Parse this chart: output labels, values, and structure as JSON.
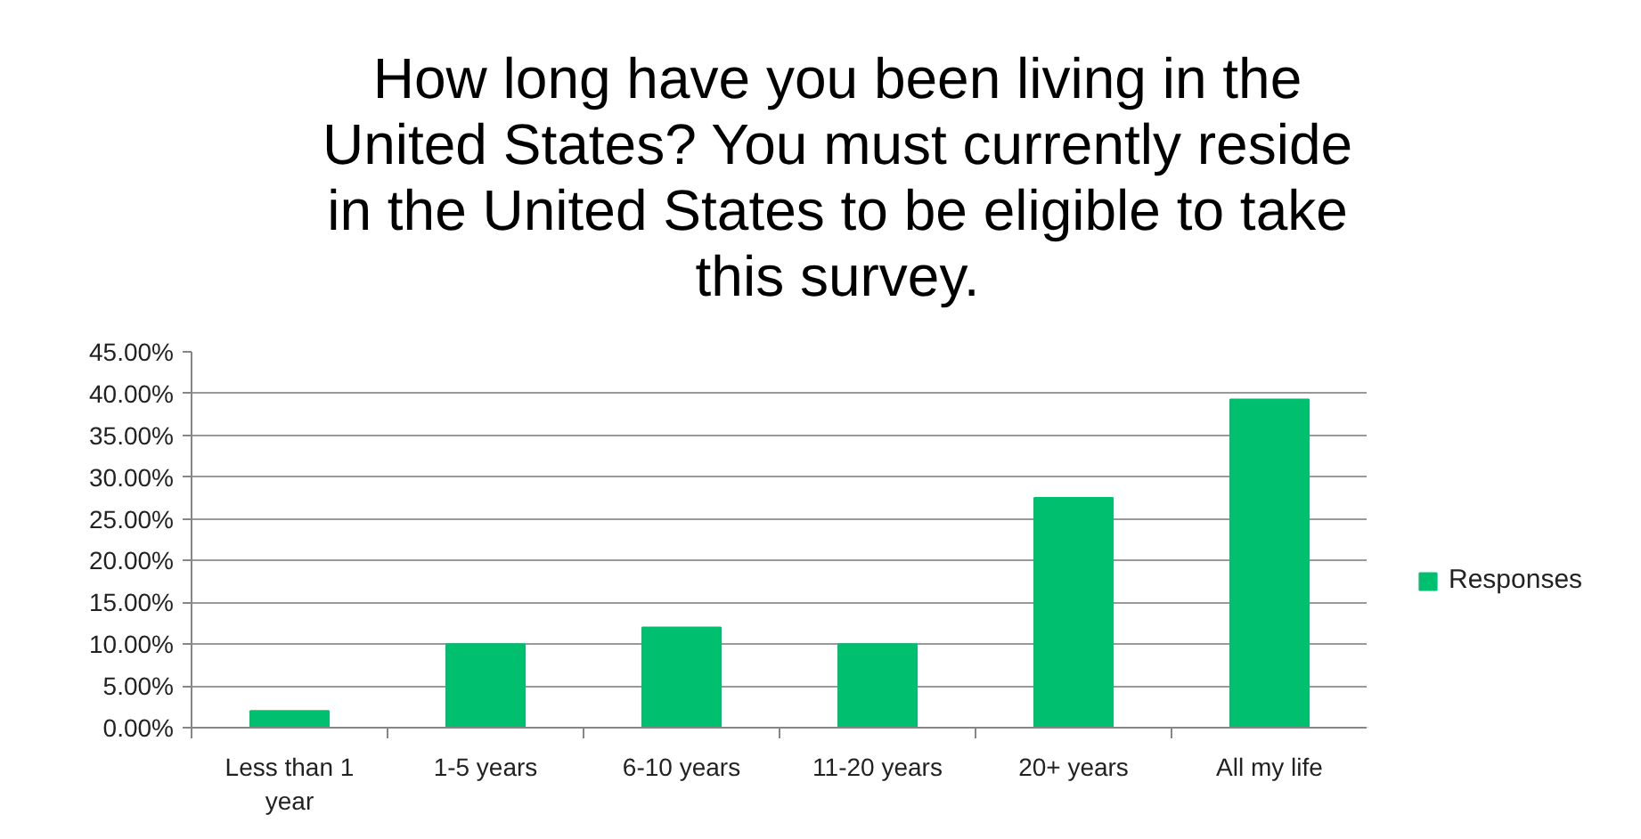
{
  "chart_data": {
    "type": "bar",
    "title": "How long have you been living in the United States? You must currently reside in the United States to be eligible to take this survey.",
    "categories": [
      "Less than 1 year",
      "1-5 years",
      "6-10 years",
      "11-20 years",
      "20+ years",
      "All my life"
    ],
    "series": [
      {
        "name": "Responses",
        "color": "#00bf6f",
        "values": [
          2,
          10,
          12,
          10,
          27.5,
          39.3
        ]
      }
    ],
    "ylim": [
      0,
      45
    ],
    "yticks": [
      {
        "value": 0,
        "label": "0.00%"
      },
      {
        "value": 5,
        "label": "5.00%"
      },
      {
        "value": 10,
        "label": "10.00%"
      },
      {
        "value": 15,
        "label": "15.00%"
      },
      {
        "value": 20,
        "label": "20.00%"
      },
      {
        "value": 25,
        "label": "25.00%"
      },
      {
        "value": 30,
        "label": "30.00%"
      },
      {
        "value": 35,
        "label": "35.00%"
      },
      {
        "value": 40,
        "label": "40.00%"
      },
      {
        "value": 45,
        "label": "45.00%"
      }
    ],
    "grid": "y",
    "legend": "right"
  }
}
